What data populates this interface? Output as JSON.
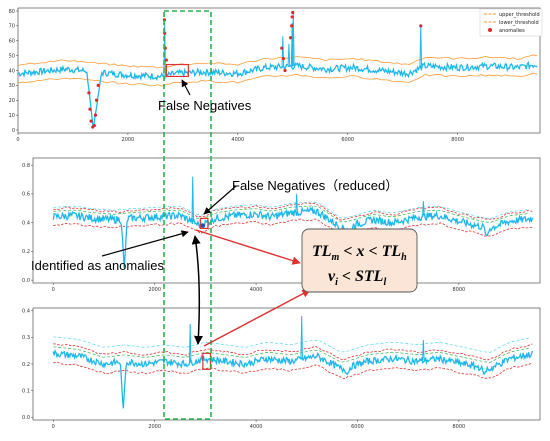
{
  "legend": {
    "upper": "upper_threshold",
    "lower": "lower_threshold",
    "anomalies": "anomalies"
  },
  "annotations": {
    "fn1": "False Negatives",
    "fn2": "False Negatives（reduced）",
    "ident": "Identified as anomalies"
  },
  "formula": {
    "line1": {
      "a": "TL",
      "a_sub": "m",
      "op1": " < x < ",
      "b": "TL",
      "b_sub": "h"
    },
    "line2": {
      "a": "v",
      "a_sub": "i",
      "op1": " < STL",
      "b_sub": "l"
    }
  },
  "colors": {
    "signal": "#1fb7ea",
    "upper": "#ff9a33",
    "lower": "#ff9a33",
    "anomaly": "#d92a2a",
    "green_dash": "#2bb24c",
    "red_box": "#e03030",
    "formula_fill": "#fbe5d6",
    "cyan_dash": "#4fd6e6"
  },
  "chart_data": [
    {
      "type": "line",
      "xlim": [
        0,
        9500
      ],
      "ylim": [
        -2,
        82
      ],
      "x_ticks": [
        0,
        2000,
        4000,
        6000,
        8000
      ],
      "y_ticks": [
        0,
        10,
        20,
        30,
        40,
        50,
        60,
        70,
        80
      ],
      "baseline": [
        [
          0,
          38
        ],
        [
          900,
          41
        ],
        [
          1400,
          39
        ],
        [
          2000,
          37
        ],
        [
          2600,
          36
        ],
        [
          2900,
          38
        ],
        [
          3400,
          39
        ],
        [
          4000,
          38
        ],
        [
          4500,
          42
        ],
        [
          5100,
          43
        ],
        [
          5600,
          41
        ],
        [
          6100,
          42
        ],
        [
          6600,
          40
        ],
        [
          7100,
          38
        ],
        [
          7400,
          43
        ],
        [
          8000,
          42
        ],
        [
          8600,
          43
        ],
        [
          9100,
          42
        ],
        [
          9400,
          44
        ]
      ],
      "dip": {
        "start": 1250,
        "min_x": 1370,
        "end": 1520,
        "min_y": 1
      },
      "spikes": [
        [
          2670,
          72
        ],
        [
          4820,
          63
        ],
        [
          4930,
          58
        ],
        [
          4990,
          72
        ],
        [
          5010,
          80
        ],
        [
          7330,
          70
        ]
      ],
      "upper_offset": 6,
      "lower_offset": -6,
      "anomaly_points": [
        [
          2665,
          74
        ],
        [
          2670,
          65
        ],
        [
          2680,
          55
        ],
        [
          2700,
          47
        ],
        [
          4800,
          55
        ],
        [
          4830,
          48
        ],
        [
          4860,
          40
        ],
        [
          4960,
          62
        ],
        [
          4980,
          70
        ],
        [
          4990,
          76
        ],
        [
          5000,
          79
        ],
        [
          7330,
          70
        ],
        [
          1290,
          25
        ],
        [
          1310,
          14
        ],
        [
          1330,
          6
        ],
        [
          1360,
          2
        ],
        [
          1390,
          3
        ],
        [
          1410,
          10
        ],
        [
          1430,
          20
        ],
        [
          1460,
          30
        ]
      ],
      "highlight_box": {
        "x": [
          2700,
          3100
        ],
        "y": [
          36,
          44
        ]
      }
    },
    {
      "type": "line",
      "xlim": [
        -400,
        9600
      ],
      "ylim": [
        -0.02,
        0.85
      ],
      "x_ticks": [
        0,
        2000,
        4000,
        6000,
        8000
      ],
      "y_ticks": [
        0.0,
        0.2,
        0.4,
        0.6,
        0.8
      ],
      "baseline": [
        [
          0,
          0.44
        ],
        [
          400,
          0.45
        ],
        [
          800,
          0.43
        ],
        [
          1200,
          0.42
        ],
        [
          1500,
          0.43
        ],
        [
          2000,
          0.44
        ],
        [
          2500,
          0.45
        ],
        [
          2900,
          0.38
        ],
        [
          3200,
          0.43
        ],
        [
          3600,
          0.45
        ],
        [
          4000,
          0.46
        ],
        [
          4300,
          0.44
        ],
        [
          4700,
          0.47
        ],
        [
          5200,
          0.48
        ],
        [
          5700,
          0.36
        ],
        [
          6300,
          0.42
        ],
        [
          6700,
          0.4
        ],
        [
          7200,
          0.44
        ],
        [
          7600,
          0.45
        ],
        [
          8100,
          0.4
        ],
        [
          8600,
          0.36
        ],
        [
          9000,
          0.41
        ],
        [
          9500,
          0.43
        ]
      ],
      "dips": [
        [
          1400,
          0.08
        ],
        [
          5850,
          0.3
        ],
        [
          8550,
          0.3
        ]
      ],
      "spikes": [
        [
          2750,
          0.72
        ],
        [
          4800,
          0.6
        ],
        [
          7300,
          0.55
        ]
      ],
      "upper_offset": 0.055,
      "lower_offset": -0.055,
      "highlight_box": {
        "x": [
          2900,
          3050
        ],
        "y": [
          0.36,
          0.43
        ]
      },
      "ident_point": [
        2950,
        0.38
      ]
    },
    {
      "type": "line",
      "xlim": [
        -400,
        9600
      ],
      "ylim": [
        -0.01,
        0.41
      ],
      "x_ticks": [
        0,
        2000,
        4000,
        6000,
        8000
      ],
      "y_ticks": [
        0.0,
        0.1,
        0.2,
        0.3,
        0.4
      ],
      "baseline": [
        [
          0,
          0.24
        ],
        [
          500,
          0.23
        ],
        [
          1000,
          0.2
        ],
        [
          1400,
          0.21
        ],
        [
          1800,
          0.2
        ],
        [
          2200,
          0.21
        ],
        [
          2600,
          0.2
        ],
        [
          3000,
          0.22
        ],
        [
          3400,
          0.21
        ],
        [
          3800,
          0.2
        ],
        [
          4200,
          0.22
        ],
        [
          4700,
          0.21
        ],
        [
          5200,
          0.23
        ],
        [
          5700,
          0.18
        ],
        [
          6200,
          0.21
        ],
        [
          6700,
          0.22
        ],
        [
          7200,
          0.21
        ],
        [
          7600,
          0.22
        ],
        [
          8100,
          0.2
        ],
        [
          8600,
          0.18
        ],
        [
          9000,
          0.22
        ],
        [
          9500,
          0.24
        ]
      ],
      "dips": [
        [
          1380,
          0.03
        ],
        [
          5800,
          0.16
        ],
        [
          8500,
          0.16
        ]
      ],
      "spikes": [
        [
          2700,
          0.35
        ],
        [
          4900,
          0.38
        ],
        [
          7300,
          0.29
        ]
      ],
      "upper_offset": 0.035,
      "lower_offset": -0.035,
      "highlight_box": {
        "x": [
          2950,
          3100
        ],
        "y": [
          0.18,
          0.24
        ]
      }
    }
  ]
}
